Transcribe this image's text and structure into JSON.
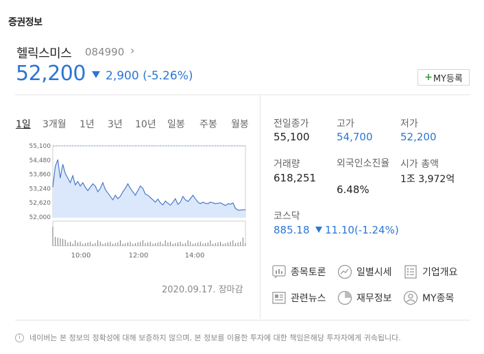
{
  "section_title": "증권정보",
  "stock": {
    "name": "헬릭스미스",
    "code": "084990",
    "price": "52,200",
    "change": "2,900 (-5.26%)"
  },
  "my_button_label": "MY등록",
  "tabs": [
    "1일",
    "3개월",
    "1년",
    "3년",
    "10년",
    "일봉",
    "주봉",
    "월봉"
  ],
  "chart_data": {
    "type": "area",
    "y_ticks": [
      "55,100",
      "54,480",
      "53,860",
      "53,240",
      "52,620",
      "52,000"
    ],
    "x_ticks": [
      "10:00",
      "12:00",
      "14:00"
    ],
    "ylim": [
      52000,
      55100
    ],
    "prev_close": 55100,
    "series": [
      {
        "values": [
          53300,
          54200,
          54500,
          53700,
          54300,
          53900,
          53700,
          53500,
          53800,
          53400,
          53550,
          53350,
          53500,
          53300,
          53150,
          53300,
          53450,
          53350,
          53100,
          53250,
          53500,
          53200,
          53050,
          52900,
          52750,
          52950,
          52800,
          52900,
          53100,
          53250,
          53450,
          53250,
          53100,
          52950,
          53150,
          53350,
          53250,
          53000,
          52950,
          52850,
          52750,
          52650,
          52780,
          52620,
          52530,
          52700,
          52600,
          52520,
          52650,
          52800,
          52550,
          52650,
          52900,
          52750,
          52680,
          52800,
          52950,
          52800,
          52650,
          52580,
          52650,
          52600,
          52580,
          52650,
          52620,
          52580,
          52600,
          52620,
          52560,
          52500,
          52580,
          52560,
          52620,
          52380,
          52300,
          52300,
          52320,
          52310
        ]
      }
    ]
  },
  "chart_date": "2020.09.17. 장마감",
  "stats": [
    {
      "label": "전일종가",
      "value": "55,100",
      "color": "#222222"
    },
    {
      "label": "고가",
      "value": "54,700",
      "color": "#2a76d5"
    },
    {
      "label": "저가",
      "value": "52,200",
      "color": "#2a76d5"
    },
    {
      "label": "거래량",
      "value": "618,251",
      "color": "#222222"
    },
    {
      "label": "외국인소진율",
      "value": "6.48%",
      "color": "#222222"
    },
    {
      "label": "시가 총액",
      "value": "1조 3,972억",
      "color": "#222222"
    }
  ],
  "kospi": {
    "label": "코스닥",
    "value": "885.18",
    "change": "11.10(-1.24%)"
  },
  "links": [
    {
      "label": "종목토론",
      "icon": "discussion-icon"
    },
    {
      "label": "일별시세",
      "icon": "chart-line-icon"
    },
    {
      "label": "기업개요",
      "icon": "list-icon"
    },
    {
      "label": "관련뉴스",
      "icon": "news-icon"
    },
    {
      "label": "재무정보",
      "icon": "pie-chart-icon"
    },
    {
      "label": "MY종목",
      "icon": "user-icon"
    }
  ],
  "footer": "네이버는 본 정보의 정확성에 대해 보증하지 않으며, 본 정보를 이용한 투자에 대한 책임은해당 투자자에게 귀속됩니다."
}
